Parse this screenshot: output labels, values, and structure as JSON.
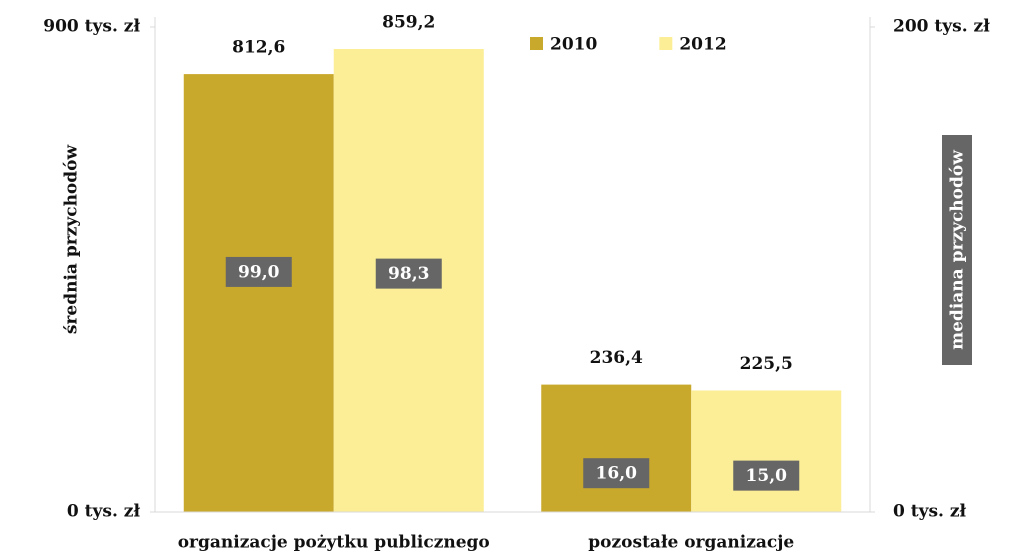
{
  "chart_data": {
    "type": "bar",
    "categories": [
      "organizacje pożytku publicznego",
      "pozostałe organizacje"
    ],
    "ylabel": "średnia przychodów",
    "y2label": "mediana przychodów",
    "ylim": [
      0,
      900
    ],
    "yticks": [
      {
        "value": 0,
        "label": "0 tys. zł"
      },
      {
        "value": 900,
        "label": "900 tys. zł"
      }
    ],
    "y2lim": [
      0,
      200
    ],
    "y2ticks": [
      {
        "value": 0,
        "label": "0 tys. zł"
      },
      {
        "value": 200,
        "label": "200 tys. zł"
      }
    ],
    "legend": "top",
    "series": [
      {
        "name": "2010",
        "color": "#c9a92c",
        "values": [
          812.6,
          236.4
        ],
        "value_labels": [
          "812,6",
          "236,4"
        ]
      },
      {
        "name": "2012",
        "color": "#fbee96",
        "values": [
          859.2,
          225.5
        ],
        "value_labels": [
          "859,2",
          "225,5"
        ]
      },
      {
        "axis": "y2",
        "color": "#666666",
        "values": [
          99.0,
          16.0
        ],
        "value_labels": [
          "99,0",
          "16,0"
        ]
      },
      {
        "axis": "y2",
        "color": "#666666",
        "values": [
          98.3,
          15.0
        ],
        "value_labels": [
          "98,3",
          "15,0"
        ]
      }
    ]
  }
}
